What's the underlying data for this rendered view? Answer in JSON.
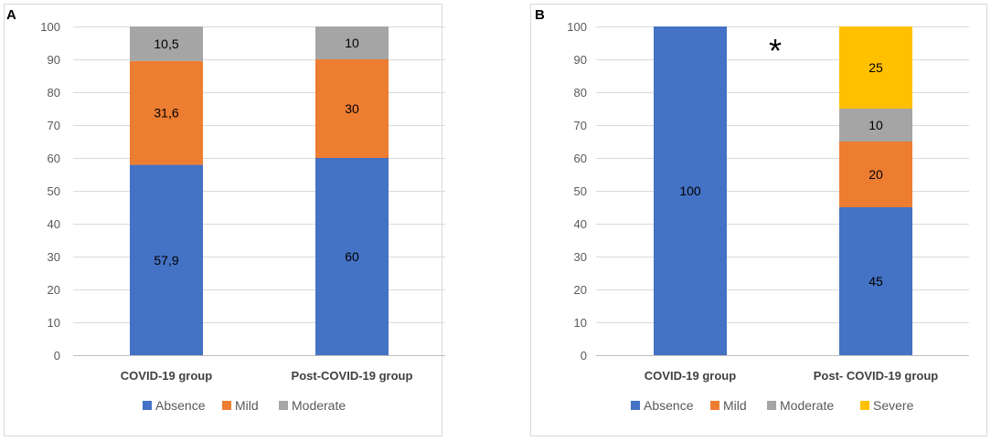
{
  "colors": {
    "Absence": "#4472C4",
    "Mild": "#ED7D31",
    "Moderate": "#A5A5A5",
    "Severe": "#FFC000"
  },
  "chart_data": [
    {
      "type": "bar",
      "stacked": true,
      "panel_label": "A",
      "categories": [
        "COVID-19 group",
        "Post-COVID-19 group"
      ],
      "series": [
        {
          "name": "Absence",
          "values": [
            57.9,
            60
          ],
          "labels": [
            "57,9",
            "60"
          ]
        },
        {
          "name": "Mild",
          "values": [
            31.6,
            30
          ],
          "labels": [
            "31,6",
            "30"
          ]
        },
        {
          "name": "Moderate",
          "values": [
            10.5,
            10
          ],
          "labels": [
            "10,5",
            "10"
          ]
        }
      ],
      "ylim": [
        0,
        100
      ],
      "yticks": [
        0,
        10,
        20,
        30,
        40,
        50,
        60,
        70,
        80,
        90,
        100
      ],
      "grid": true,
      "legend": "bottom",
      "annotation": ""
    },
    {
      "type": "bar",
      "stacked": true,
      "panel_label": "B",
      "categories": [
        "COVID-19 group",
        "Post- COVID-19 group"
      ],
      "series": [
        {
          "name": "Absence",
          "values": [
            100,
            45
          ],
          "labels": [
            "100",
            "45"
          ]
        },
        {
          "name": "Mild",
          "values": [
            0,
            20
          ],
          "labels": [
            "",
            "20"
          ]
        },
        {
          "name": "Moderate",
          "values": [
            0,
            10
          ],
          "labels": [
            "",
            "10"
          ]
        },
        {
          "name": "Severe",
          "values": [
            0,
            25
          ],
          "labels": [
            "",
            "25"
          ]
        }
      ],
      "ylim": [
        0,
        100
      ],
      "yticks": [
        0,
        10,
        20,
        30,
        40,
        50,
        60,
        70,
        80,
        90,
        100
      ],
      "grid": true,
      "legend": "bottom",
      "annotation": "*"
    }
  ]
}
